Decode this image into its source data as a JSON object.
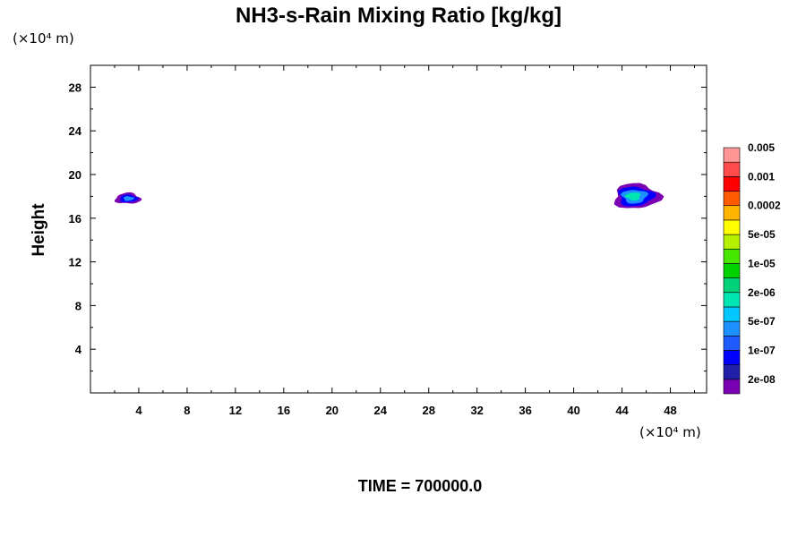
{
  "chart_data": {
    "type": "heatmap",
    "title": "NH3-s-Rain Mixing Ratio [kg/kg]",
    "ylabel": "Height",
    "x_unit": "(×10⁴ m)",
    "y_unit": "(×10⁴ m)",
    "xlim": [
      0,
      51
    ],
    "ylim": [
      0,
      30
    ],
    "x_ticks": [
      4,
      8,
      12,
      16,
      20,
      24,
      28,
      32,
      36,
      40,
      44,
      48
    ],
    "y_ticks": [
      4,
      8,
      12,
      16,
      20,
      24,
      28
    ],
    "colorbar": {
      "colors": [
        "#7a00b4",
        "#1f1fa8",
        "#0000ff",
        "#1e5cff",
        "#1e90ff",
        "#00c8ff",
        "#00e5b4",
        "#00d27a",
        "#00d200",
        "#46e600",
        "#b4f000",
        "#ffff00",
        "#ffb400",
        "#ff5a00",
        "#ff0000",
        "#ff4b4b",
        "#ff9696"
      ],
      "labels": [
        "2e-08",
        "1e-07",
        "5e-07",
        "2e-06",
        "1e-05",
        "5e-05",
        "0.0002",
        "0.001",
        "0.005"
      ]
    },
    "regions": [
      {
        "x_center": 3.1,
        "y_center": 17.8,
        "x_extent": [
          1.7,
          3.8
        ],
        "y_extent": [
          17.3,
          18.3
        ],
        "values": [
          "2e-08",
          "1e-07",
          "5e-07"
        ]
      },
      {
        "x_center": 45.2,
        "y_center": 18.0,
        "x_extent": [
          43.8,
          47.6
        ],
        "y_extent": [
          16.9,
          19.2
        ],
        "values": [
          "2e-08",
          "1e-07",
          "5e-07",
          "2e-06"
        ]
      }
    ]
  },
  "footer": {
    "time_label": "TIME = 700000.0"
  }
}
